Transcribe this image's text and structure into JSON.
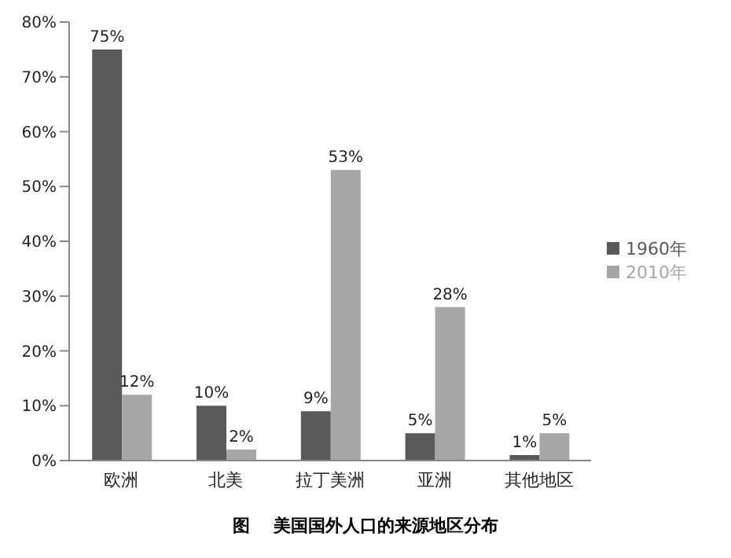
{
  "chart_data": {
    "type": "bar",
    "title": "图    美国国外人口的来源地区分布",
    "categories": [
      "欧洲",
      "北美",
      "拉丁美洲",
      "亚洲",
      "其他地区"
    ],
    "series": [
      {
        "name": "1960年",
        "color": "#595959",
        "values": [
          75,
          10,
          9,
          5,
          1
        ],
        "value_labels": [
          "75%",
          "10%",
          "9%",
          "5%",
          "1%"
        ]
      },
      {
        "name": "2010年",
        "color": "#a6a6a6",
        "values": [
          12,
          2,
          53,
          28,
          5
        ],
        "value_labels": [
          "12%",
          "2%",
          "53%",
          "28%",
          "5%"
        ]
      }
    ],
    "ylim": [
      0,
      80
    ],
    "yticks": [
      {
        "value": 0,
        "label": "0%"
      },
      {
        "value": 10,
        "label": "10%"
      },
      {
        "value": 20,
        "label": "20%"
      },
      {
        "value": 30,
        "label": "30%"
      },
      {
        "value": 40,
        "label": "40%"
      },
      {
        "value": 50,
        "label": "50%"
      },
      {
        "value": 60,
        "label": "60%"
      },
      {
        "value": 70,
        "label": "70%"
      },
      {
        "value": 80,
        "label": "80%"
      }
    ],
    "grid": false,
    "legend": "right"
  }
}
